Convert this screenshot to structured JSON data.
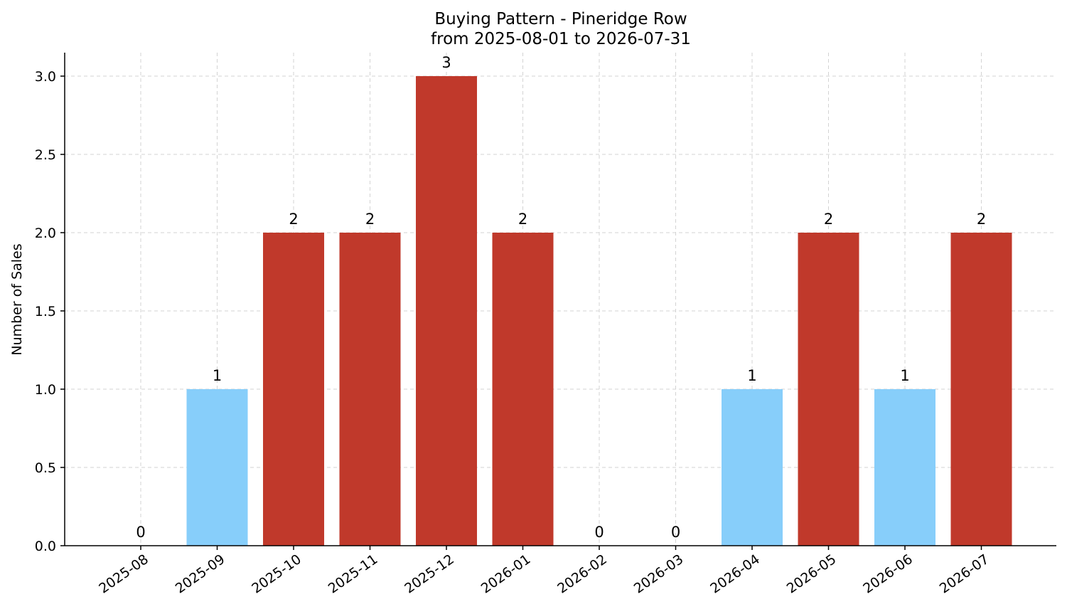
{
  "chart_data": {
    "type": "bar",
    "title": "Buying Pattern - Pineridge Row",
    "subtitle": "from 2025-08-01 to 2026-07-31",
    "xlabel": "",
    "ylabel": "Number of Sales",
    "categories": [
      "2025-08",
      "2025-09",
      "2025-10",
      "2025-11",
      "2025-12",
      "2026-01",
      "2026-02",
      "2026-03",
      "2026-04",
      "2026-05",
      "2026-06",
      "2026-07"
    ],
    "values": [
      0,
      1,
      2,
      2,
      3,
      2,
      0,
      0,
      1,
      2,
      1,
      2
    ],
    "ylim": [
      0,
      3.15
    ],
    "yticks": [
      "0.0",
      "0.5",
      "1.0",
      "1.5",
      "2.0",
      "2.5",
      "3.0"
    ],
    "grid": true,
    "colors": {
      "high": "#c0392b",
      "low": "#87cefa",
      "high_threshold": 2
    }
  }
}
